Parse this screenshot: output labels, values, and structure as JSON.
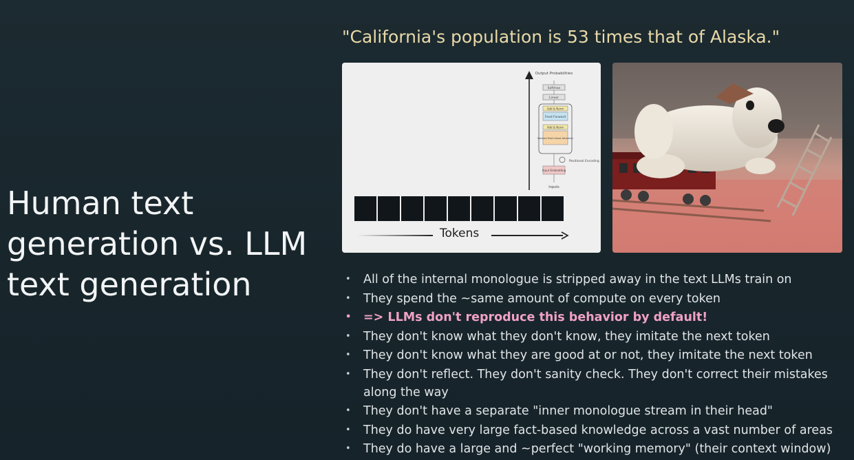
{
  "slide": {
    "title": "Human text generation vs. LLM text generation",
    "quote": "\"California's population is 53 times that of Alaska.\""
  },
  "diagram": {
    "tokens_label": "Tokens",
    "token_count": 9,
    "arch_labels": {
      "output": "Output Probabilities",
      "softmax": "Softmax",
      "linear": "Linear",
      "add_norm": "Add & Norm",
      "feed_forward": "Feed Forward",
      "attention": "Masked Multi-Head Attention",
      "positional": "Positional Encoding",
      "embedding": "Input Embedding",
      "inputs": "Inputs"
    }
  },
  "bullets": [
    {
      "text": "All of the internal monologue is stripped away in the text LLMs train on"
    },
    {
      "text": "They spend the ~same amount of compute on every token"
    },
    {
      "text": "=> LLMs don't reproduce this behavior by default!",
      "highlight": true
    },
    {
      "text": "They don't know what they don't know, they imitate the next token"
    },
    {
      "text": "They don't know what they are good at or not, they imitate the next token"
    },
    {
      "text": "They don't reflect. They don't sanity check. They don't correct their mistakes along the way"
    },
    {
      "text": "They don't have a separate \"inner monologue stream in their head\""
    },
    {
      "text": "They do have very large fact-based knowledge across a vast number of areas"
    },
    {
      "text": "They do have a large and ~perfect \"working memory\" (their context window)"
    }
  ],
  "colors": {
    "background": "#1b2930",
    "quote": "#e9d9a7",
    "highlight": "#f0a1c4",
    "text": "#e1e5e7"
  }
}
